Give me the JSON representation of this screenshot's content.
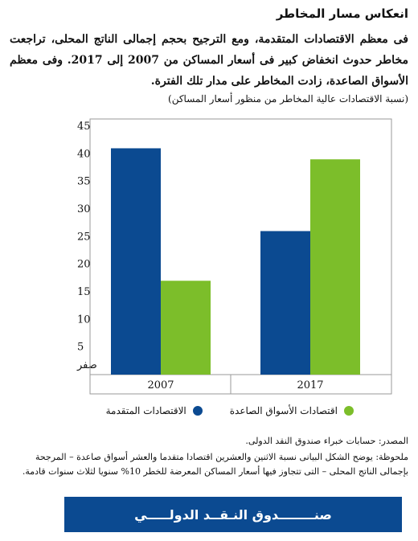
{
  "header": {
    "title": "انعكاس مسار المخاطر",
    "subtitle": "فى معظم الاقتصادات المتقدمة، ومع الترجيح بحجم إجمالى الناتج المحلى، تراجعت مخاطر حدوث انخفاض كبير فى أسعار المساكن من 2007 إلى 2017. وفى معظم الأسواق الصاعدة، زادت المخاطر على مدار تلك الفترة.",
    "unit_note": "(نسبة الاقتصادات عالية المخاطر من منظور أسعار المساكن)"
  },
  "colors": {
    "advanced": "#0b4a91",
    "emerging": "#7cbe2a",
    "footer_bar": "#0b4a91"
  },
  "chart_data": {
    "type": "bar",
    "categories": [
      "2007",
      "2017"
    ],
    "series": [
      {
        "name": "الاقتصادات المتقدمة",
        "values": [
          41,
          26
        ]
      },
      {
        "name": "اقتصادات الأسواق الصاعدة",
        "values": [
          17,
          39
        ]
      }
    ],
    "ylim": [
      0,
      45
    ],
    "yticks": [
      0,
      5,
      10,
      15,
      20,
      25,
      30,
      35,
      40,
      45
    ],
    "ytick_labels": [
      "صفر",
      "5",
      "10",
      "15",
      "20",
      "25",
      "30",
      "35",
      "40",
      "45"
    ],
    "xlabel": "",
    "ylabel": "",
    "grid": false,
    "legend_position": "bottom"
  },
  "legend": {
    "advanced": "الاقتصادات المتقدمة",
    "emerging": "اقتصادات الأسواق الصاعدة"
  },
  "footer": {
    "source": "المصدر: حسابات خبراء صندوق النقد الدولى.",
    "note": "ملحوظة: يوضح الشكل البيانى نسبة الاثنين والعشرين اقتصادا متقدما والعشر أسواق صاعدة – المرجحة بإجمالى الناتج المحلى – التى تتجاوز فيها أسعار المساكن المعرضة للخطر 10% سنويا لثلاث سنوات قادمة.",
    "org_bar": "صنــــــــدوق النـقــد الدولـــــي"
  }
}
